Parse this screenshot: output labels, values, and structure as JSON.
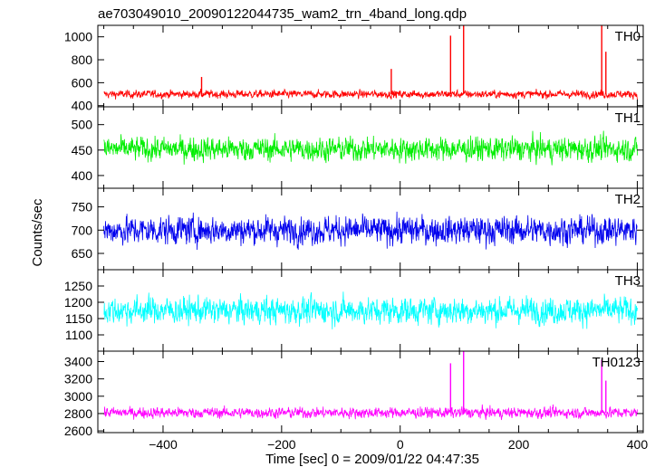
{
  "chart_data": {
    "type": "line",
    "title": "ae703049010_20090122044735_wam2_trn_4band_long.qdp",
    "xlabel": "Time [sec] 0 = 2009/01/22 04:47:35",
    "ylabel": "Counts/sec",
    "xlim": [
      -510,
      410
    ],
    "xticks": [
      -400,
      -200,
      0,
      200,
      400
    ],
    "grid": false,
    "panels": [
      {
        "name": "TH0",
        "color": "#ff0000",
        "ylim": [
          390,
          1100
        ],
        "yticks": [
          400,
          600,
          800,
          1000
        ],
        "baseline": 500,
        "noise": 25,
        "spikes": [
          {
            "x": -335,
            "y": 650
          },
          {
            "x": -15,
            "y": 720
          },
          {
            "x": 85,
            "y": 1010
          },
          {
            "x": 107,
            "y": 1100
          },
          {
            "x": 340,
            "y": 1100
          },
          {
            "x": 347,
            "y": 870
          }
        ]
      },
      {
        "name": "TH1",
        "color": "#00ee00",
        "ylim": [
          375,
          535
        ],
        "yticks": [
          400,
          450,
          500
        ],
        "baseline": 452,
        "noise": 17,
        "spikes": []
      },
      {
        "name": "TH2",
        "color": "#0000ee",
        "ylim": [
          615,
          790
        ],
        "yticks": [
          650,
          700,
          750
        ],
        "baseline": 700,
        "noise": 22,
        "spikes": []
      },
      {
        "name": "TH3",
        "color": "#00ffff",
        "ylim": [
          1050,
          1300
        ],
        "yticks": [
          1100,
          1150,
          1200,
          1250
        ],
        "baseline": 1175,
        "noise": 30,
        "spikes": []
      },
      {
        "name": "TH0123",
        "color": "#ff00ff",
        "ylim": [
          2580,
          3520
        ],
        "yticks": [
          2600,
          2800,
          3000,
          3200,
          3400
        ],
        "baseline": 2810,
        "noise": 45,
        "spikes": [
          {
            "x": 85,
            "y": 3380
          },
          {
            "x": 107,
            "y": 3520
          },
          {
            "x": 340,
            "y": 3420
          },
          {
            "x": 347,
            "y": 3180
          }
        ]
      }
    ]
  }
}
